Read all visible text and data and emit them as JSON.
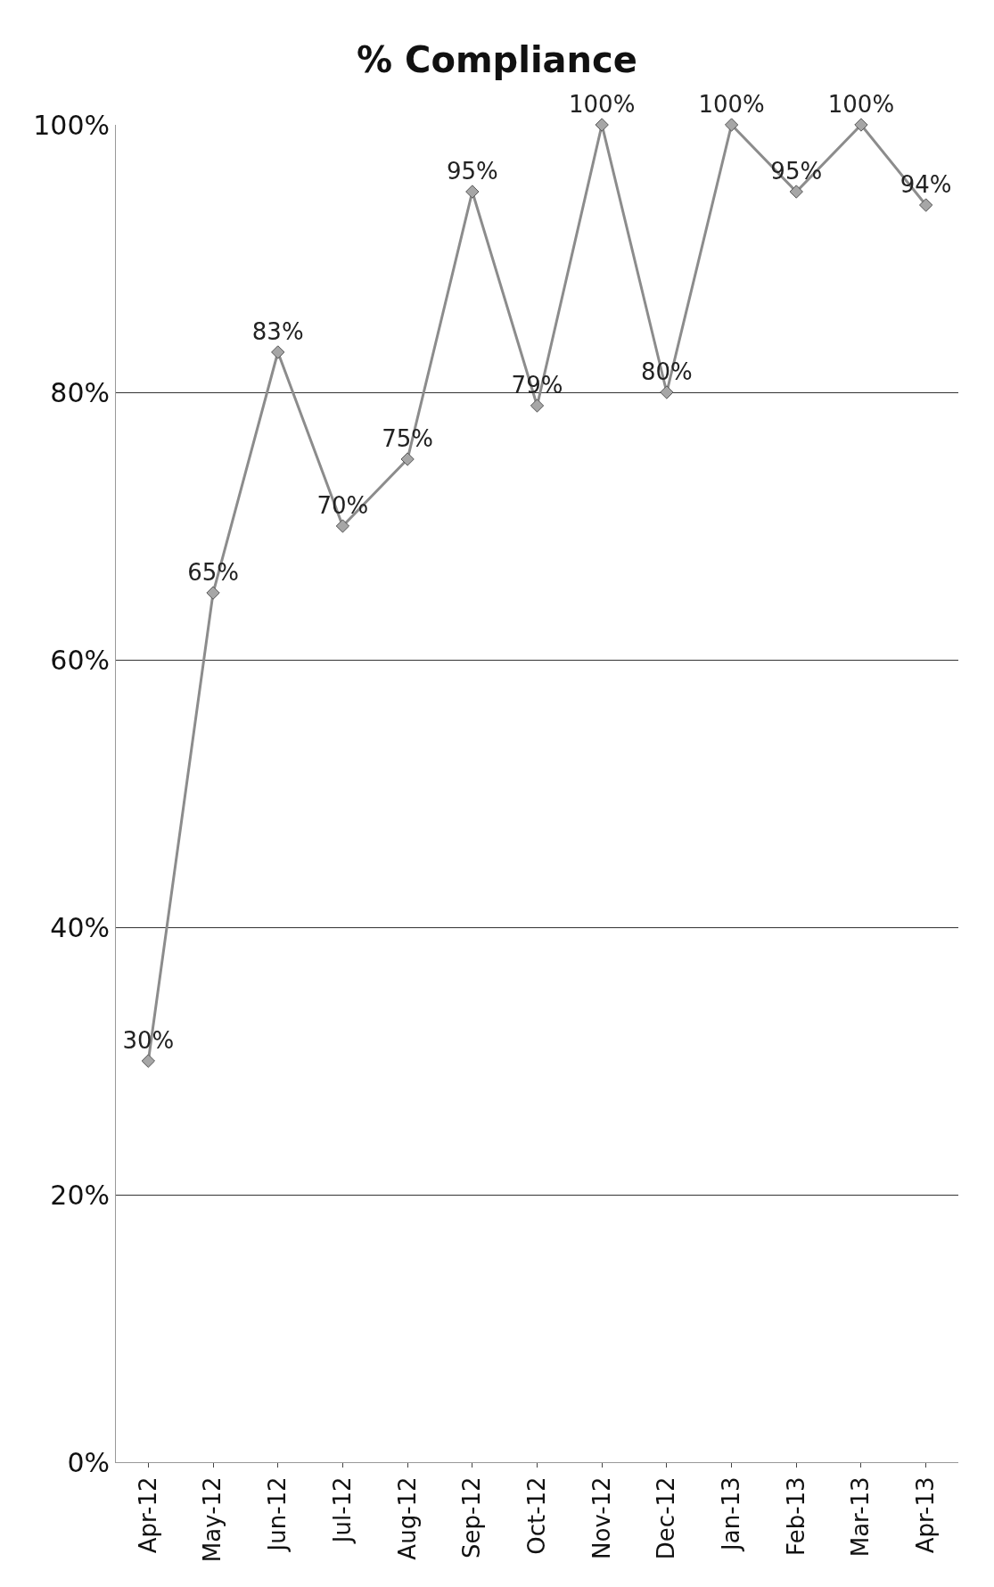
{
  "chart_data": {
    "type": "line",
    "title": "% Compliance",
    "categories": [
      "Apr-12",
      "May-12",
      "Jun-12",
      "Jul-12",
      "Aug-12",
      "Sep-12",
      "Oct-12",
      "Nov-12",
      "Dec-12",
      "Jan-13",
      "Feb-13",
      "Mar-13",
      "Apr-13"
    ],
    "series": [
      {
        "color": "#8c8c8c",
        "values": [
          30,
          65,
          83,
          70,
          75,
          95,
          79,
          100,
          80,
          100,
          95,
          100,
          94
        ]
      }
    ],
    "value_labels": [
      "30%",
      "65%",
      "83%",
      "70%",
      "75%",
      "95%",
      "79%",
      "100%",
      "80%",
      "100%",
      "95%",
      "100%",
      "94%"
    ],
    "ylim": [
      0,
      100
    ],
    "yticks": [
      {
        "value": 0,
        "label": "0%"
      },
      {
        "value": 20,
        "label": "20%"
      },
      {
        "value": 40,
        "label": "40%"
      },
      {
        "value": 60,
        "label": "60%"
      },
      {
        "value": 80,
        "label": "80%"
      },
      {
        "value": 100,
        "label": "100%"
      }
    ],
    "grid": "y",
    "marker": "diamond",
    "line_style": "solid",
    "legend": false
  }
}
